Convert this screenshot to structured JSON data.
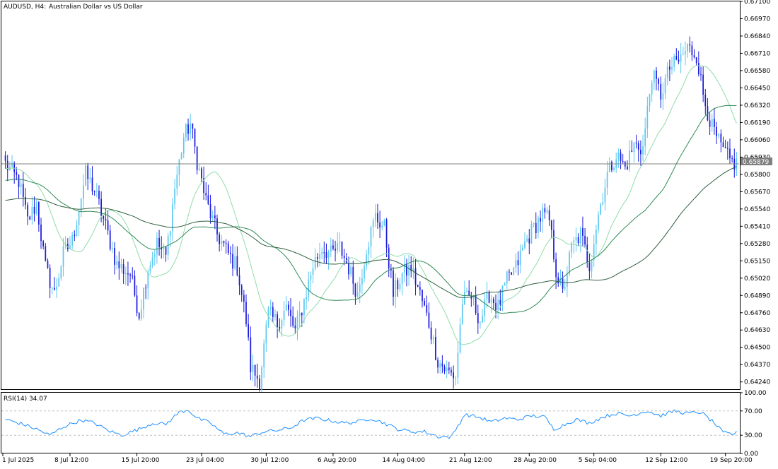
{
  "window": {
    "symbol_timeframe": "AUDUSD, H4:",
    "description": "Australian Dollar vs US Dollar"
  },
  "colors": {
    "background": "#ffffff",
    "grid": "#c8c8c8",
    "bull_candle": "#5cc8f0",
    "bear_candle": "#1a1adc",
    "ma_fast": "#8fdcaa",
    "ma_mid": "#2e8b57",
    "ma_slow": "#2f5f3f",
    "rsi_line": "#1e90ff",
    "bid_line": "#808080",
    "price_tag_bg": "#808080",
    "price_tag_text": "#ffffff"
  },
  "chart_data": [
    {
      "type": "candlestick",
      "title": "AUDUSD, H4:  Australian Dollar vs US Dollar",
      "ylim": [
        0.6418,
        0.671
      ],
      "y_ticks": [
        "0.67100",
        "0.66970",
        "0.66840",
        "0.66710",
        "0.66580",
        "0.66450",
        "0.66320",
        "0.66190",
        "0.66060",
        "0.65930",
        "0.65800",
        "0.65670",
        "0.65540",
        "0.65410",
        "0.65280",
        "0.65150",
        "0.65020",
        "0.64890",
        "0.64760",
        "0.64630",
        "0.64500",
        "0.64370",
        "0.64240"
      ],
      "x_ticks": [
        "1 Jul 2025",
        "8 Jul 12:00",
        "15 Jul 20:00",
        "23 Jul 04:00",
        "30 Jul 12:00",
        "6 Aug 20:00",
        "14 Aug 04:00",
        "21 Aug 12:00",
        "28 Aug 20:00",
        "5 Sep 04:00",
        "12 Sep 12:00",
        "19 Sep 20:00"
      ],
      "current_price": "0.65879",
      "close_anchors": [
        [
          0,
          0.6588
        ],
        [
          6,
          0.6575
        ],
        [
          10,
          0.6545
        ],
        [
          14,
          0.6558
        ],
        [
          18,
          0.651
        ],
        [
          22,
          0.649
        ],
        [
          26,
          0.652
        ],
        [
          30,
          0.653
        ],
        [
          36,
          0.658
        ],
        [
          40,
          0.6568
        ],
        [
          46,
          0.6535
        ],
        [
          50,
          0.6512
        ],
        [
          56,
          0.6505
        ],
        [
          60,
          0.6475
        ],
        [
          64,
          0.651
        ],
        [
          68,
          0.6528
        ],
        [
          72,
          0.6518
        ],
        [
          76,
          0.657
        ],
        [
          80,
          0.6608
        ],
        [
          83,
          0.6618
        ],
        [
          86,
          0.659
        ],
        [
          90,
          0.656
        ],
        [
          95,
          0.6535
        ],
        [
          100,
          0.652
        ],
        [
          104,
          0.651
        ],
        [
          108,
          0.647
        ],
        [
          110,
          0.6435
        ],
        [
          114,
          0.6425
        ],
        [
          118,
          0.6475
        ],
        [
          122,
          0.6468
        ],
        [
          126,
          0.648
        ],
        [
          130,
          0.6462
        ],
        [
          134,
          0.6485
        ],
        [
          138,
          0.6512
        ],
        [
          142,
          0.6525
        ],
        [
          146,
          0.652
        ],
        [
          150,
          0.6525
        ],
        [
          154,
          0.651
        ],
        [
          158,
          0.649
        ],
        [
          162,
          0.6525
        ],
        [
          166,
          0.6548
        ],
        [
          170,
          0.654
        ],
        [
          174,
          0.649
        ],
        [
          178,
          0.6505
        ],
        [
          182,
          0.651
        ],
        [
          186,
          0.649
        ],
        [
          190,
          0.6468
        ],
        [
          194,
          0.644
        ],
        [
          198,
          0.6432
        ],
        [
          202,
          0.6428
        ],
        [
          205,
          0.6485
        ],
        [
          209,
          0.6488
        ],
        [
          213,
          0.647
        ],
        [
          217,
          0.649
        ],
        [
          221,
          0.648
        ],
        [
          225,
          0.65
        ],
        [
          229,
          0.651
        ],
        [
          233,
          0.6528
        ],
        [
          237,
          0.654
        ],
        [
          241,
          0.655
        ],
        [
          244,
          0.6545
        ],
        [
          247,
          0.6508
        ],
        [
          250,
          0.649
        ],
        [
          254,
          0.6525
        ],
        [
          258,
          0.6535
        ],
        [
          262,
          0.6512
        ],
        [
          266,
          0.655
        ],
        [
          270,
          0.658
        ],
        [
          274,
          0.6595
        ],
        [
          278,
          0.6585
        ],
        [
          282,
          0.6602
        ],
        [
          286,
          0.66
        ],
        [
          290,
          0.6655
        ],
        [
          294,
          0.664
        ],
        [
          298,
          0.666
        ],
        [
          302,
          0.6665
        ],
        [
          306,
          0.6675
        ],
        [
          310,
          0.667
        ],
        [
          313,
          0.664
        ],
        [
          317,
          0.6615
        ],
        [
          321,
          0.66
        ],
        [
          325,
          0.659
        ],
        [
          328,
          0.6588
        ]
      ],
      "rsi": {
        "label": "RSI(14) 34.07",
        "ylim": [
          0,
          100
        ],
        "levels": [
          70,
          30
        ],
        "y_ticks": [
          "100.00",
          "70.00",
          "30.00",
          "0.00"
        ],
        "anchors": [
          [
            0,
            56
          ],
          [
            8,
            48
          ],
          [
            14,
            40
          ],
          [
            20,
            30
          ],
          [
            26,
            44
          ],
          [
            34,
            55
          ],
          [
            40,
            50
          ],
          [
            46,
            38
          ],
          [
            52,
            30
          ],
          [
            60,
            40
          ],
          [
            66,
            50
          ],
          [
            72,
            48
          ],
          [
            78,
            68
          ],
          [
            82,
            72
          ],
          [
            86,
            58
          ],
          [
            92,
            50
          ],
          [
            98,
            32
          ],
          [
            104,
            34
          ],
          [
            110,
            28
          ],
          [
            116,
            36
          ],
          [
            122,
            38
          ],
          [
            128,
            42
          ],
          [
            134,
            55
          ],
          [
            140,
            58
          ],
          [
            146,
            54
          ],
          [
            152,
            50
          ],
          [
            158,
            52
          ],
          [
            164,
            58
          ],
          [
            170,
            50
          ],
          [
            176,
            40
          ],
          [
            182,
            36
          ],
          [
            188,
            36
          ],
          [
            194,
            28
          ],
          [
            200,
            27
          ],
          [
            206,
            64
          ],
          [
            212,
            60
          ],
          [
            218,
            52
          ],
          [
            224,
            58
          ],
          [
            230,
            56
          ],
          [
            236,
            62
          ],
          [
            242,
            60
          ],
          [
            246,
            40
          ],
          [
            250,
            46
          ],
          [
            256,
            56
          ],
          [
            262,
            50
          ],
          [
            268,
            60
          ],
          [
            274,
            66
          ],
          [
            280,
            62
          ],
          [
            288,
            70
          ],
          [
            294,
            62
          ],
          [
            300,
            70
          ],
          [
            306,
            66
          ],
          [
            312,
            68
          ],
          [
            318,
            50
          ],
          [
            322,
            34
          ],
          [
            326,
            32
          ],
          [
            328,
            34
          ]
        ]
      },
      "moving_averages": [
        {
          "color_key": "ma_fast",
          "period": 20
        },
        {
          "color_key": "ma_mid",
          "period": 50
        },
        {
          "color_key": "ma_slow",
          "period": 100
        }
      ]
    }
  ]
}
